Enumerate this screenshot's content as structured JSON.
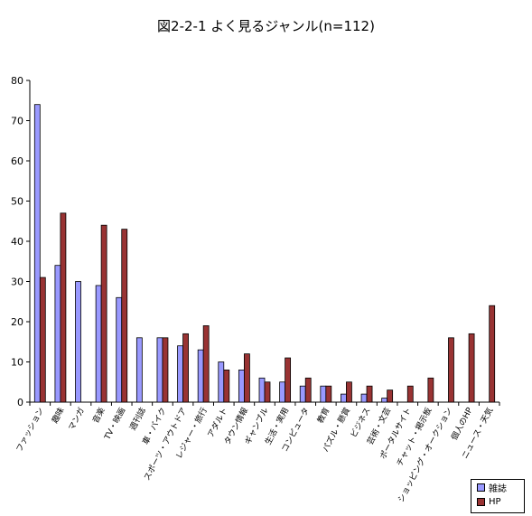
{
  "chart_data": {
    "type": "bar",
    "title": "図2-2-1 よく見るジャンル(n=112)",
    "xlabel": "",
    "ylabel": "",
    "ylim": [
      0,
      80
    ],
    "yticks": [
      "0",
      "10",
      "20",
      "30",
      "40",
      "50",
      "60",
      "70",
      "80"
    ],
    "grid": false,
    "legend_position": "bottom-right",
    "categories": [
      "ファッション",
      "趣味",
      "マンガ",
      "音楽",
      "TV・映画",
      "週刊誌",
      "車・バイク",
      "スポーツ・アウトドア",
      "レジャー・旅行",
      "アダルト",
      "タウン情報",
      "ギャンブル",
      "生活・実用",
      "コンピュータ",
      "教育",
      "パズル・懸賞",
      "ビジネス",
      "芸術・文芸",
      "ポータルサイト",
      "チャット・掲示板",
      "ショッピング・オークション",
      "個人のHP",
      "ニュース・天気"
    ],
    "series": [
      {
        "name": "雑誌",
        "color": "#9999ff",
        "values": [
          74,
          34,
          30,
          29,
          26,
          16,
          16,
          14,
          13,
          10,
          8,
          6,
          5,
          4,
          4,
          2,
          2,
          1,
          0,
          0,
          0,
          0,
          0
        ]
      },
      {
        "name": "HP",
        "color": "#993333",
        "values": [
          31,
          47,
          0,
          44,
          43,
          0,
          16,
          17,
          19,
          8,
          12,
          5,
          11,
          6,
          4,
          5,
          4,
          3,
          4,
          6,
          16,
          17,
          24
        ]
      }
    ]
  }
}
